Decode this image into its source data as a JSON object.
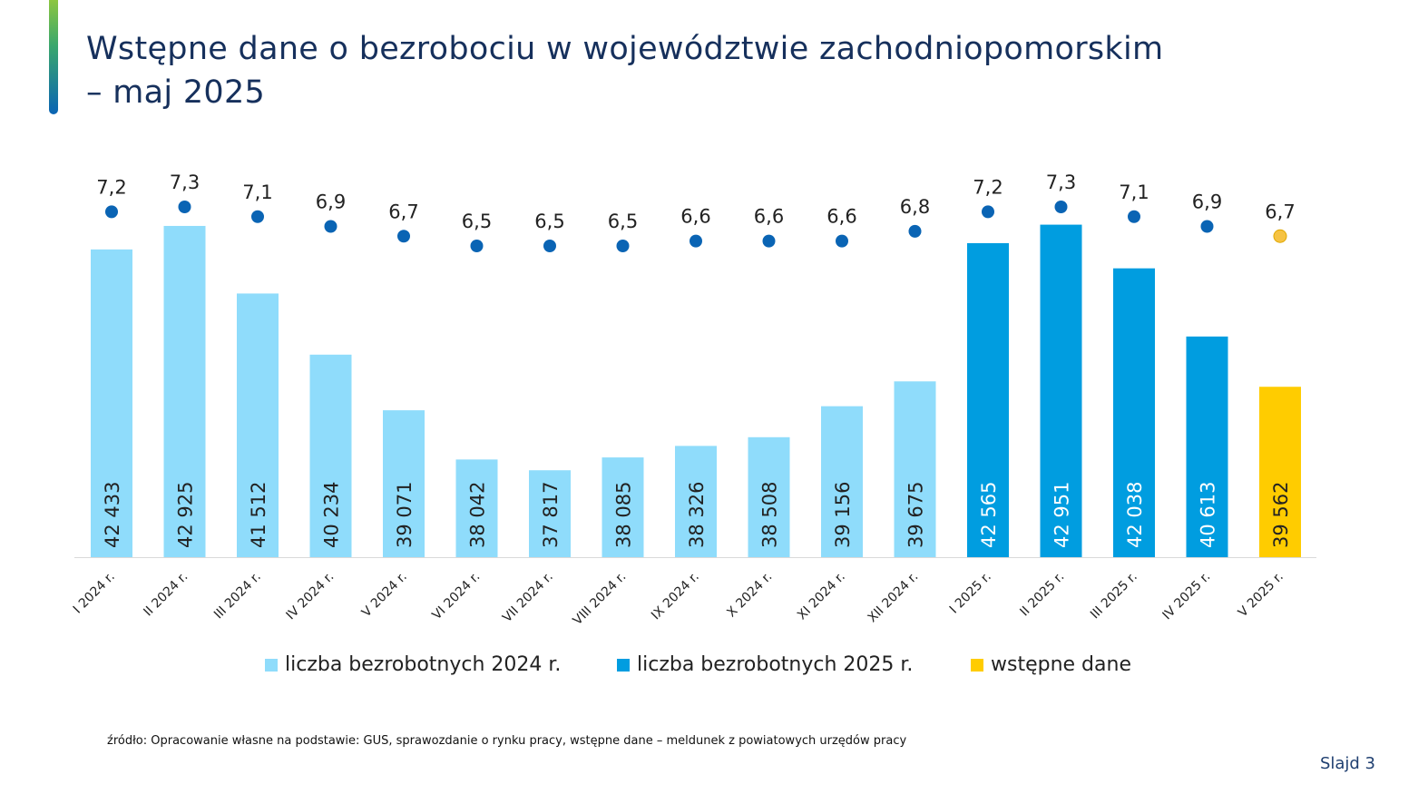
{
  "title": {
    "line1": "Wstępne dane o bezrobociu w województwie zachodniopomorskim",
    "line2": "– maj 2025"
  },
  "chart_data": {
    "type": "bar",
    "categories": [
      "I 2024 r.",
      "II 2024 r.",
      "III 2024 r.",
      "IV 2024 r.",
      "V 2024 r.",
      "VI 2024 r.",
      "VII 2024 r.",
      "VIII 2024 r.",
      "IX 2024 r.",
      "X 2024 r.",
      "XI 2024 r.",
      "XII 2024 r.",
      "I 2025 r.",
      "II 2025 r.",
      "III 2025 r.",
      "IV 2025 r.",
      "V 2025 r."
    ],
    "series": [
      {
        "values": [
          42433,
          42925,
          41512,
          40234,
          39071,
          38042,
          37817,
          38085,
          38326,
          38508,
          39156,
          39675,
          42565,
          42951,
          42038,
          40613,
          39562
        ],
        "labels": [
          "42 433",
          "42 925",
          "41 512",
          "40 234",
          "39 071",
          "38 042",
          "37 817",
          "38 085",
          "38 326",
          "38 508",
          "39 156",
          "39 675",
          "42 565",
          "42 951",
          "42 038",
          "40 613",
          "39 562"
        ],
        "groups": [
          "2024",
          "2024",
          "2024",
          "2024",
          "2024",
          "2024",
          "2024",
          "2024",
          "2024",
          "2024",
          "2024",
          "2024",
          "2025",
          "2025",
          "2025",
          "2025",
          "prelim"
        ]
      },
      {
        "values": [
          7.2,
          7.3,
          7.1,
          6.9,
          6.7,
          6.5,
          6.5,
          6.5,
          6.6,
          6.6,
          6.6,
          6.8,
          7.2,
          7.3,
          7.1,
          6.9,
          6.7
        ],
        "labels": [
          "7,2",
          "7,3",
          "7,1",
          "6,9",
          "6,7",
          "6,5",
          "6,5",
          "6,5",
          "6,6",
          "6,6",
          "6,6",
          "6,8",
          "7,2",
          "7,3",
          "7,1",
          "6,9",
          "6,7"
        ]
      }
    ],
    "legend": [
      {
        "label": "liczba bezrobotnych 2024 r.",
        "color": "#8fdcfb"
      },
      {
        "label": "liczba bezrobotnych 2025 r.",
        "color": "#009de0"
      },
      {
        "label": "wstępne dane",
        "color": "#ffcc00"
      }
    ],
    "colors": {
      "2024": "#8fdcfb",
      "2025": "#009de0",
      "prelim": "#ffcc00",
      "dot": "#0a64b4",
      "dot_prelim": "#f6c343"
    },
    "legend_position": "bottom",
    "grid": false
  },
  "source": "źródło: Opracowanie własne na podstawie: GUS, sprawozdanie o rynku pracy, wstępne dane – meldunek z powiatowych urzędów pracy",
  "slide_number": "Slajd 3"
}
